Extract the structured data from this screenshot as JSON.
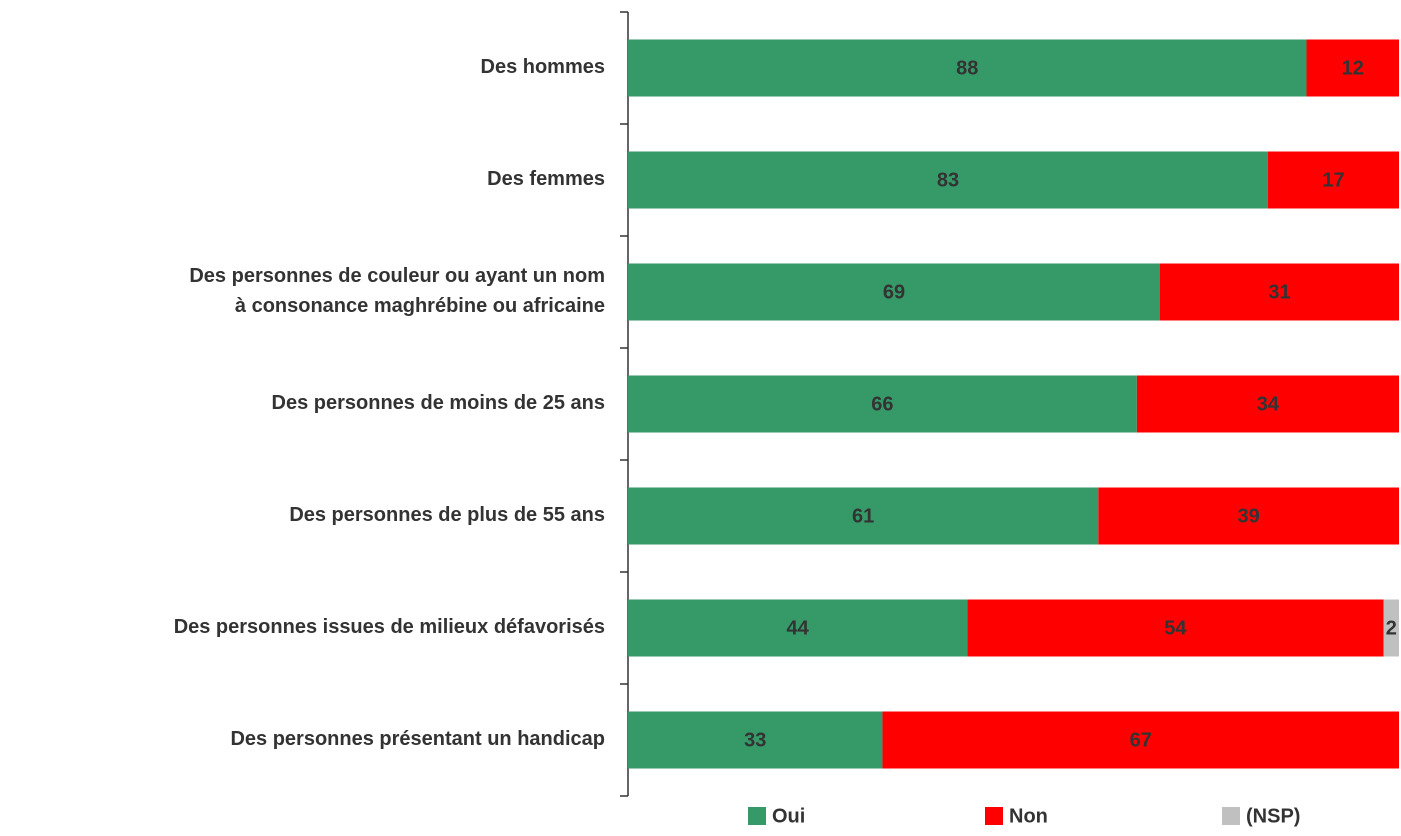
{
  "chart_data": {
    "type": "stacked-bar-horizontal",
    "categories": [
      "Des hommes",
      "Des femmes",
      "Des personnes de couleur ou ayant un nom\nà consonance maghrébine ou africaine",
      "Des personnes de moins de 25 ans",
      "Des personnes de plus de 55 ans",
      "Des personnes issues de milieux défavorisés",
      "Des personnes présentant un handicap"
    ],
    "series": [
      {
        "name": "Oui",
        "color": "#359a68",
        "values": [
          88,
          83,
          69,
          66,
          61,
          44,
          33
        ]
      },
      {
        "name": "Non",
        "color": "#ff0000",
        "values": [
          12,
          17,
          31,
          34,
          39,
          54,
          67
        ]
      },
      {
        "name": "(NSP)",
        "color": "#c0c0c0",
        "values": [
          null,
          null,
          null,
          null,
          null,
          2,
          null
        ]
      }
    ],
    "xlim": [
      0,
      100
    ],
    "legend": "bottom"
  }
}
